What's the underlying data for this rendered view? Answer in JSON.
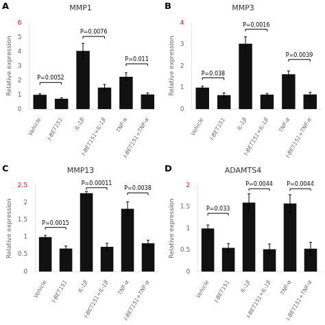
{
  "chart_data": [
    {
      "type": "bar",
      "panel_label": "A",
      "title": "MMP1",
      "ylabel": "Relative expression",
      "categories": [
        "Vehicle",
        "I-BET151",
        "IL-1β",
        "I-BET151+IL-1β",
        "TNF-α",
        "I-BET151+TNF-α"
      ],
      "values": [
        1.0,
        0.72,
        4.05,
        1.5,
        2.25,
        1.02
      ],
      "errors": [
        0.07,
        0.07,
        0.52,
        0.22,
        0.28,
        0.1
      ],
      "color": "#111111",
      "ylim": [
        0,
        6
      ],
      "yticks": [
        0,
        1,
        2,
        3,
        4,
        5,
        6
      ],
      "grid": false,
      "annotations": [
        {
          "from": "Vehicle",
          "to": "I-BET151",
          "y": 1.85,
          "label": "P=0.0052"
        },
        {
          "from": "IL-1β",
          "to": "I-BET151+IL-1β",
          "y": 5.05,
          "label": "P=0.0076"
        },
        {
          "from": "TNF-α",
          "to": "I-BET151+TNF-α",
          "y": 3.15,
          "label": "P=0.011"
        }
      ]
    },
    {
      "type": "bar",
      "panel_label": "B",
      "title": "MMP3",
      "ylabel": "Relative expression",
      "categories": [
        "Vehicle",
        "I-BET151",
        "IL-1β",
        "I-BET151+IL-1β",
        "TNF-α",
        "I-BET151+TNF-α"
      ],
      "values": [
        1.0,
        0.65,
        3.03,
        0.67,
        1.62,
        0.68
      ],
      "errors": [
        0.06,
        0.1,
        0.32,
        0.06,
        0.15,
        0.1
      ],
      "color": "#111111",
      "ylim": [
        0,
        4
      ],
      "yticks": [
        0,
        1,
        2,
        3,
        4
      ],
      "grid": false,
      "annotations": [
        {
          "from": "Vehicle",
          "to": "I-BET151",
          "y": 1.45,
          "label": "P=0.038"
        },
        {
          "from": "IL-1β",
          "to": "I-BET151+IL-1β",
          "y": 3.7,
          "label": "P=0.0016"
        },
        {
          "from": "TNF-α",
          "to": "I-BET151+TNF-α",
          "y": 2.3,
          "label": "P=0.0039"
        }
      ]
    },
    {
      "type": "bar",
      "panel_label": "C",
      "title": "MMP13",
      "ylabel": "Relative expression",
      "categories": [
        "Vehicle",
        "I-BET151",
        "IL-1β",
        "I-BET151+IL-1β",
        "TNF-α",
        "I-BET151+TNF-α"
      ],
      "values": [
        1.0,
        0.67,
        2.27,
        0.72,
        1.82,
        0.82
      ],
      "errors": [
        0.05,
        0.07,
        0.05,
        0.1,
        0.2,
        0.09
      ],
      "color": "#111111",
      "ylim": [
        0,
        2.5
      ],
      "yticks": [
        0,
        0.5,
        1,
        1.5,
        2,
        2.5
      ],
      "grid": false,
      "annotations": [
        {
          "from": "Vehicle",
          "to": "I-BET151",
          "y": 1.28,
          "label": "P=0.0015"
        },
        {
          "from": "IL-1β",
          "to": "I-BET151+IL-1β",
          "y": 2.43,
          "label": "P=0.00011"
        },
        {
          "from": "TNF-α",
          "to": "I-BET151+TNF-α",
          "y": 2.28,
          "label": "P=0.0038"
        }
      ]
    },
    {
      "type": "bar",
      "panel_label": "D",
      "title": "ADAMTS4",
      "ylabel": "Relative expression",
      "categories": [
        "Vehicle",
        "I-BET151",
        "IL-1β",
        "I-BET151+IL-1β",
        "TNF-α",
        "I-BET151+TNF-α"
      ],
      "values": [
        1.0,
        0.55,
        1.6,
        0.52,
        1.58,
        0.53
      ],
      "errors": [
        0.08,
        0.1,
        0.2,
        0.12,
        0.2,
        0.15
      ],
      "color": "#111111",
      "ylim": [
        0,
        2
      ],
      "yticks": [
        0,
        0.5,
        1,
        1.5,
        2
      ],
      "grid": false,
      "annotations": [
        {
          "from": "Vehicle",
          "to": "I-BET151",
          "y": 1.35,
          "label": "P=0.033"
        },
        {
          "from": "IL-1β",
          "to": "I-BET151+IL-1β",
          "y": 1.92,
          "label": "P=0.0044"
        },
        {
          "from": "TNF-α",
          "to": "I-BET151+TNF-α",
          "y": 1.92,
          "label": "P=0.0044"
        }
      ]
    }
  ]
}
